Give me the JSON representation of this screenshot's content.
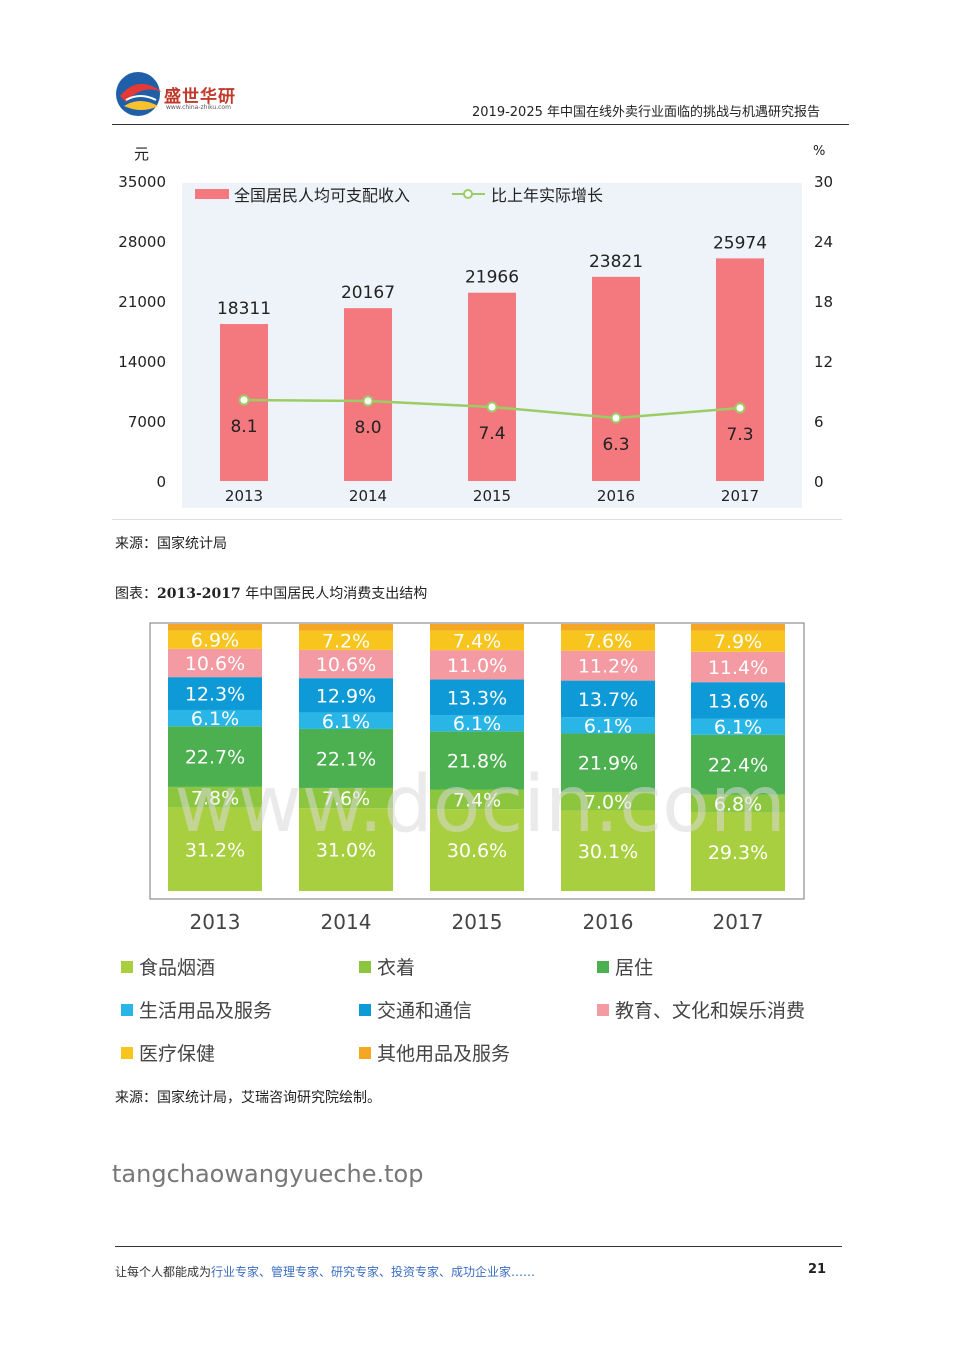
{
  "header": {
    "logo_text": "盛世华研",
    "logo_url": "www.china-zhiku.com",
    "report_title": "2019-2025 年中国在线外卖行业面临的挑战与机遇研究报告"
  },
  "chart1": {
    "left_unit": "元",
    "right_unit": "%",
    "legend_bar": "全国居民人均可支配收入",
    "legend_line": "比上年实际增长",
    "left_ticks": [
      "0",
      "7000",
      "14000",
      "21000",
      "28000",
      "35000"
    ],
    "right_ticks": [
      "0",
      "6",
      "12",
      "18",
      "24",
      "30"
    ],
    "bar_color": "#f4797e",
    "line_color": "#9ccc65",
    "chart_data": {
      "type": "bar",
      "categories": [
        "2013",
        "2014",
        "2015",
        "2016",
        "2017"
      ],
      "series": [
        {
          "name": "全国居民人均可支配收入",
          "type": "bar",
          "axis": "left",
          "values": [
            18311,
            20167,
            21966,
            23821,
            25974
          ]
        },
        {
          "name": "比上年实际增长",
          "type": "line",
          "axis": "right",
          "values": [
            8.1,
            8.0,
            7.4,
            6.3,
            7.3
          ]
        }
      ],
      "ylim": [
        0,
        35000
      ],
      "y2lim": [
        0,
        30
      ]
    }
  },
  "source1": "来源：国家统计局",
  "figure2_title_prefix": "图表：",
  "figure2_title_bold": "2013-2017",
  "figure2_title_rest": " 年中国居民人均消费支出结构",
  "chart2": {
    "chart_data": {
      "type": "bar",
      "stacked": true,
      "categories": [
        "2013",
        "2014",
        "2015",
        "2016",
        "2017"
      ],
      "series": [
        {
          "name": "食品烟酒",
          "color": "#a8cf3f",
          "values": [
            31.2,
            31.0,
            30.6,
            30.1,
            29.3
          ]
        },
        {
          "name": "衣着",
          "color": "#8cc63f",
          "values": [
            7.8,
            7.6,
            7.4,
            7.0,
            6.8
          ]
        },
        {
          "name": "居住",
          "color": "#4caf50",
          "values": [
            22.7,
            22.1,
            21.8,
            21.9,
            22.4
          ]
        },
        {
          "name": "生活用品及服务",
          "color": "#29b6e6",
          "values": [
            6.1,
            6.1,
            6.1,
            6.1,
            6.1
          ]
        },
        {
          "name": "交通和通信",
          "color": "#0e9ad6",
          "values": [
            12.3,
            12.9,
            13.3,
            13.7,
            13.6
          ]
        },
        {
          "name": "教育、文化和娱乐消费",
          "color": "#f39aa3",
          "values": [
            10.6,
            10.6,
            11.0,
            11.2,
            11.4
          ]
        },
        {
          "name": "医疗保健",
          "color": "#f7c51e",
          "values": [
            6.9,
            7.2,
            7.4,
            7.6,
            7.9
          ]
        },
        {
          "name": "其他用品及服务",
          "color": "#f5a623",
          "values": [
            2.4,
            2.5,
            2.4,
            2.4,
            2.5
          ]
        }
      ],
      "data_labels": [
        [
          "31.2%",
          "7.8%",
          "22.7%",
          "6.1%",
          "12.3%",
          "10.6%",
          "6.9%"
        ],
        [
          "31.0%",
          "7.6%",
          "22.1%",
          "6.1%",
          "12.9%",
          "10.6%",
          "7.2%"
        ],
        [
          "30.6%",
          "7.4%",
          "21.8%",
          "6.1%",
          "13.3%",
          "11.0%",
          "7.4%"
        ],
        [
          "30.1%",
          "7.0%",
          "21.9%",
          "6.1%",
          "13.7%",
          "11.2%",
          "7.6%"
        ],
        [
          "29.3%",
          "6.8%",
          "22.4%",
          "6.1%",
          "13.6%",
          "11.4%",
          "7.9%"
        ]
      ]
    },
    "watermark": "www.docin.com"
  },
  "source2": "来源：国家统计局，艾瑞咨询研究院绘制。",
  "site_watermark": "tangchaowangyueche.top",
  "footer": {
    "lead": "让每个人都能成为",
    "highlight": "行业专家、管理专家、研究专家、投资专家、成功企业家……",
    "page_number": "21"
  }
}
